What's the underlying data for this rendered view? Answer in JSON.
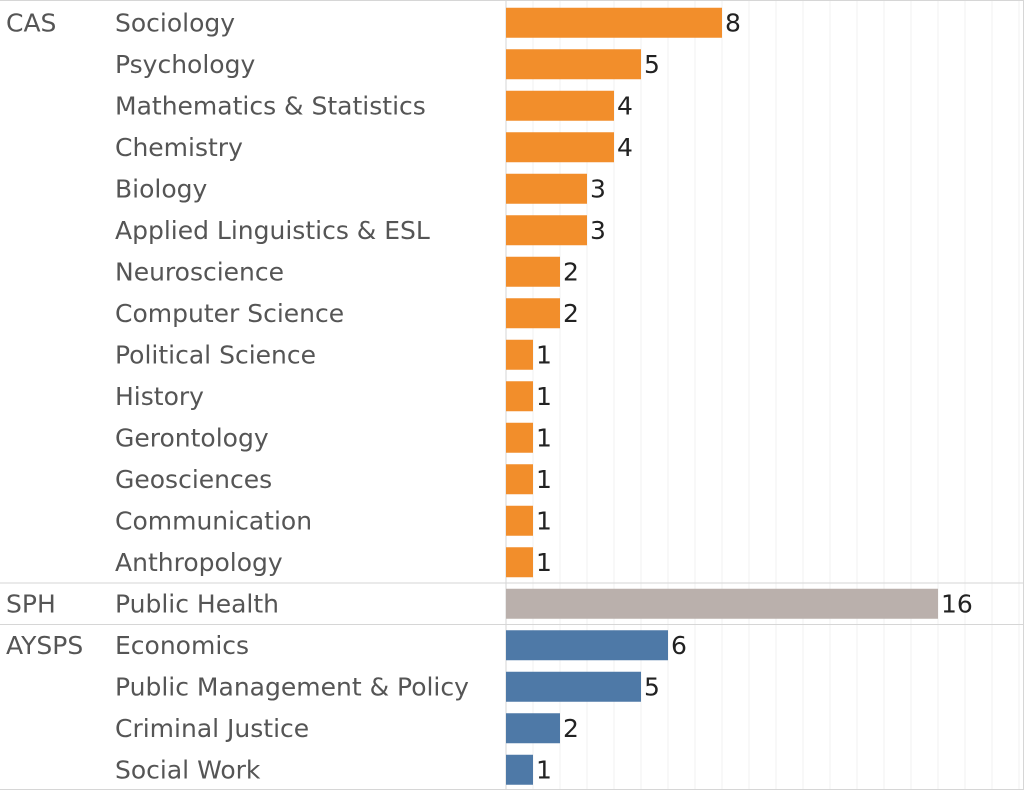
{
  "chart_data": {
    "type": "bar",
    "orientation": "horizontal",
    "title": "",
    "xlabel": "",
    "ylabel": "",
    "xlim": [
      0,
      19
    ],
    "grid": true,
    "legend": "none",
    "groups": [
      {
        "label": "CAS",
        "color": "#f28e2b",
        "categories": [
          "Sociology",
          "Psychology",
          "Mathematics & Statistics",
          "Chemistry",
          "Biology",
          "Applied Linguistics & ESL",
          "Neuroscience",
          "Computer Science",
          "Political Science",
          "History",
          "Gerontology",
          "Geosciences",
          "Communication",
          "Anthropology"
        ],
        "values": [
          8,
          5,
          4,
          4,
          3,
          3,
          2,
          2,
          1,
          1,
          1,
          1,
          1,
          1
        ]
      },
      {
        "label": "SPH",
        "color": "#bab0ac",
        "categories": [
          "Public Health"
        ],
        "values": [
          16
        ]
      },
      {
        "label": "AYSPS",
        "color": "#4e79a7",
        "categories": [
          "Economics",
          "Public Management & Policy",
          "Criminal Justice",
          "Social Work"
        ],
        "values": [
          6,
          5,
          2,
          1
        ]
      }
    ]
  }
}
